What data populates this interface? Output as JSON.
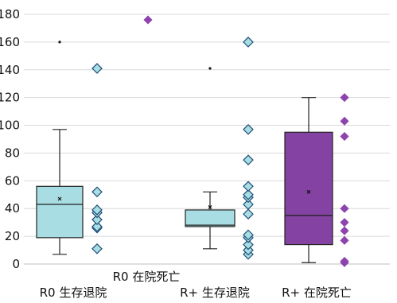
{
  "chart_data": {
    "type": "box",
    "ylim": [
      0,
      180
    ],
    "yticks": [
      0,
      20,
      40,
      60,
      80,
      100,
      120,
      140,
      160,
      180
    ],
    "grid": true,
    "colors": {
      "box_light": "#a8dde3",
      "box_purple": "#8443a3",
      "point_blue": "#a8dde3",
      "point_purple": "#8e44ad",
      "grid": "#d9d9d9"
    },
    "groups": [
      {
        "label": "R0 生存退院",
        "color": "box_light",
        "box": {
          "min": 7,
          "q1": 19,
          "median": 43,
          "q3": 56,
          "max": 97,
          "mean": 47
        },
        "outliers": [
          160
        ],
        "points": [
          11,
          26,
          27,
          32,
          37,
          39,
          52,
          141
        ]
      },
      {
        "label": "R0 在院死亡",
        "color": "box_purple",
        "box": null,
        "outliers": [],
        "points": [
          176
        ]
      },
      {
        "label": "R+ 生存退院",
        "color": "box_light",
        "box": {
          "min": 11,
          "q1": 27,
          "median": 28,
          "q3": 39,
          "max": 52,
          "mean": 41
        },
        "outliers": [
          141
        ],
        "points": [
          7,
          10,
          14,
          19,
          21,
          36,
          43,
          48,
          50,
          56,
          75,
          97,
          160
        ]
      },
      {
        "label": "R+ 在院死亡",
        "color": "box_purple",
        "box": {
          "min": 1,
          "q1": 14,
          "median": 35,
          "q3": 95,
          "max": 120,
          "mean": 52
        },
        "outliers": [],
        "points": [
          1,
          2,
          17,
          24,
          30,
          40,
          92,
          103,
          120
        ]
      }
    ]
  }
}
